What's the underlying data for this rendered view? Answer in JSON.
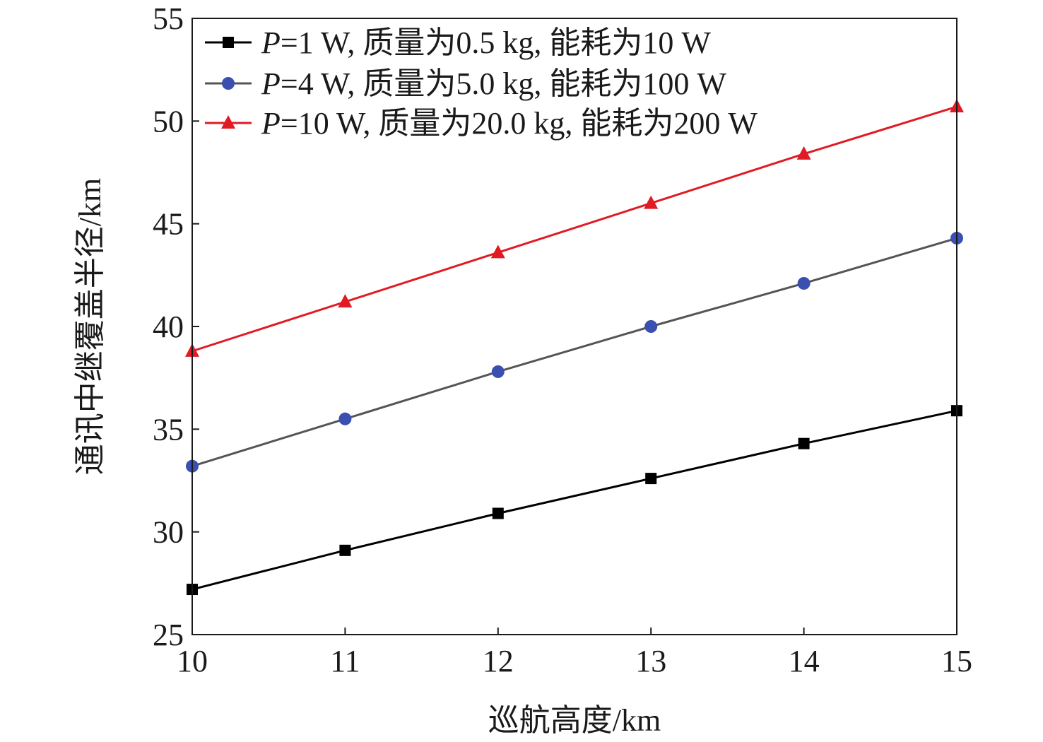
{
  "chart_data": {
    "type": "line",
    "title": "",
    "xlabel": "巡航高度/km",
    "ylabel": "通讯中继覆盖半径/km",
    "xlim": [
      10,
      15
    ],
    "ylim": [
      25,
      55
    ],
    "x_ticks": [
      "10",
      "11",
      "12",
      "13",
      "14",
      "15"
    ],
    "y_ticks": [
      "25",
      "30",
      "35",
      "40",
      "45",
      "50",
      "55"
    ],
    "x": [
      10,
      11,
      12,
      13,
      14,
      15
    ],
    "grid": false,
    "legend_position": "top-left",
    "series": [
      {
        "name": "P=1 W, 质量为0.5 kg, 能耗为10 W",
        "legend_var": "P",
        "legend_rest": "=1 W, 质量为0.5 kg, 能耗为10 W",
        "marker": "square",
        "color": "#000000",
        "values": [
          27.2,
          29.1,
          30.9,
          32.6,
          34.3,
          35.9
        ]
      },
      {
        "name": "P=4 W, 质量为5.0 kg, 能耗为100 W",
        "legend_var": "P",
        "legend_rest": "=4 W, 质量为5.0 kg, 能耗为100 W",
        "marker": "circle",
        "color": "#3a4fb0",
        "line_color": "#555555",
        "values": [
          33.2,
          35.5,
          37.8,
          40.0,
          42.1,
          44.3
        ]
      },
      {
        "name": "P=10 W, 质量为20.0 kg, 能耗为200 W",
        "legend_var": "P",
        "legend_rest": "=10 W, 质量为20.0 kg, 能耗为200 W",
        "marker": "triangle",
        "color": "#e01b24",
        "values": [
          38.8,
          41.2,
          43.6,
          46.0,
          48.4,
          50.7
        ]
      }
    ]
  }
}
